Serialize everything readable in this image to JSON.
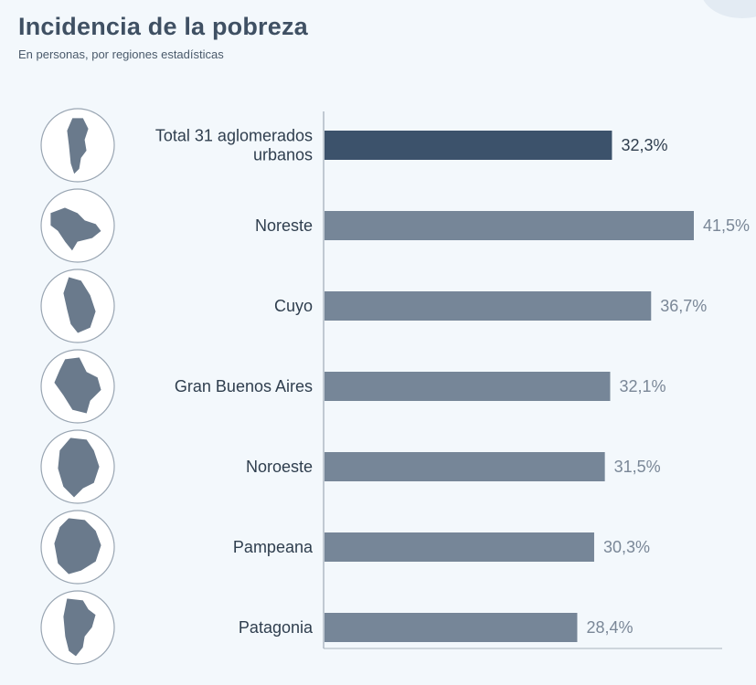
{
  "header": {
    "title": "Incidencia de la pobreza",
    "subtitle": "En personas, por regiones estadísticas"
  },
  "colors": {
    "highlight_bar": "#3c526b",
    "bar": "#768698",
    "map_fill": "#6a7a8c",
    "circle_stroke": "#9aa6b3"
  },
  "chart_data": {
    "type": "bar",
    "orientation": "horizontal",
    "title": "Incidencia de la pobreza",
    "subtitle": "En personas, por regiones estadísticas",
    "categories": [
      [
        "Total 31 aglomerados",
        "urbanos"
      ],
      [
        "Noreste"
      ],
      [
        "Cuyo"
      ],
      [
        "Gran Buenos Aires"
      ],
      [
        "Noroeste"
      ],
      [
        "Pampeana"
      ],
      [
        "Patagonia"
      ]
    ],
    "values": [
      32.3,
      41.5,
      36.7,
      32.1,
      31.5,
      30.3,
      28.4
    ],
    "value_labels": [
      "32,3%",
      "41,5%",
      "36,7%",
      "32,1%",
      "31,5%",
      "30,3%",
      "28,4%"
    ],
    "highlight_index": 0,
    "icons": [
      "argentina-map-icon",
      "noreste-region-icon",
      "cuyo-region-icon",
      "gba-region-icon",
      "noroeste-region-icon",
      "pampeana-region-icon",
      "patagonia-region-icon"
    ],
    "xlim": [
      0,
      45
    ],
    "grid": false,
    "legend": "none"
  }
}
